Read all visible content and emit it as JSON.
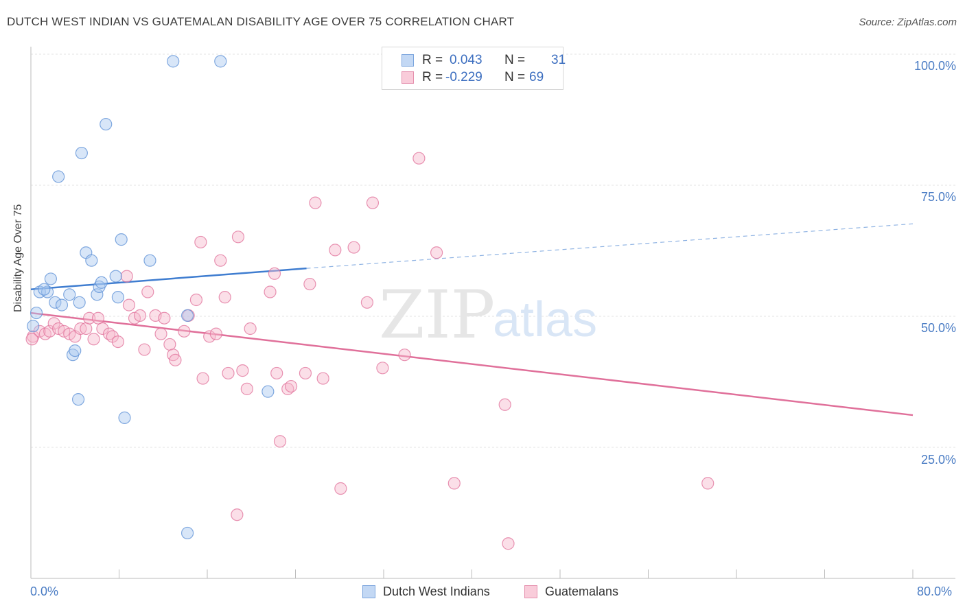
{
  "header": {
    "title": "DUTCH WEST INDIAN VS GUATEMALAN DISABILITY AGE OVER 75 CORRELATION CHART",
    "source": "Source: ZipAtlas.com"
  },
  "watermark": {
    "zip": "ZIP",
    "atlas": "atlas"
  },
  "legend": {
    "rows": [
      {
        "r_label": "R =",
        "r_value": "0.043",
        "n_label": "N =",
        "n_value": "31",
        "color": "#a9c8f0"
      },
      {
        "r_label": "R =",
        "r_value": "-0.229",
        "n_label": "N =",
        "n_value": "69",
        "color": "#f6b8cb"
      }
    ]
  },
  "chart_data": {
    "type": "scatter",
    "ylabel": "Disability Age Over 75",
    "xlabel": "",
    "xlim": [
      0,
      80
    ],
    "ylim": [
      0,
      105
    ],
    "x_tick_labels": [
      "0.0%",
      "80.0%"
    ],
    "y_tick_labels": [
      "100.0%",
      "75.0%",
      "50.0%",
      "25.0%"
    ],
    "y_ticks": [
      100,
      75,
      50,
      25
    ],
    "grid": true,
    "legend_position": "bottom-center",
    "series": [
      {
        "name": "Dutch West Indians",
        "color": "#5b8fd6",
        "fill": "#a9c8f0",
        "points": [
          [
            0.2,
            50.5
          ],
          [
            0.5,
            53.0
          ],
          [
            0.8,
            57.0
          ],
          [
            1.5,
            57.0
          ],
          [
            1.8,
            59.5
          ],
          [
            1.2,
            57.5
          ],
          [
            2.2,
            55.0
          ],
          [
            2.8,
            54.5
          ],
          [
            3.5,
            56.5
          ],
          [
            3.8,
            45.0
          ],
          [
            4.0,
            45.8
          ],
          [
            4.4,
            55.0
          ],
          [
            2.5,
            79.0
          ],
          [
            4.6,
            83.5
          ],
          [
            6.8,
            89.0
          ],
          [
            5.0,
            64.5
          ],
          [
            5.5,
            63.0
          ],
          [
            6.0,
            56.5
          ],
          [
            6.2,
            58.0
          ],
          [
            6.4,
            58.8
          ],
          [
            7.7,
            60.0
          ],
          [
            7.9,
            56.0
          ],
          [
            8.2,
            67.0
          ],
          [
            8.5,
            33.0
          ],
          [
            10.8,
            63.0
          ],
          [
            12.9,
            101.0
          ],
          [
            14.2,
            52.5
          ],
          [
            14.2,
            11.0
          ],
          [
            17.2,
            101.0
          ],
          [
            21.5,
            38.0
          ],
          [
            4.3,
            36.5
          ]
        ],
        "trend": {
          "x_start": 0,
          "y_start": 57.5,
          "x_solid_end": 25,
          "y_solid_end": 61.5,
          "x_end": 80,
          "y_end": 70.0
        }
      },
      {
        "name": "Guatemalans",
        "color": "#e0709a",
        "fill": "#f6b8cb",
        "points": [
          [
            0.2,
            48.5
          ],
          [
            0.8,
            49.5
          ],
          [
            1.3,
            49.0
          ],
          [
            1.7,
            49.5
          ],
          [
            2.1,
            51.0
          ],
          [
            2.5,
            50.0
          ],
          [
            3.0,
            49.5
          ],
          [
            3.5,
            49.0
          ],
          [
            4.0,
            48.5
          ],
          [
            4.5,
            50.0
          ],
          [
            5.0,
            50.0
          ],
          [
            5.3,
            52.0
          ],
          [
            5.7,
            48.0
          ],
          [
            6.1,
            52.0
          ],
          [
            6.5,
            50.0
          ],
          [
            7.1,
            49.0
          ],
          [
            7.4,
            48.5
          ],
          [
            7.9,
            47.5
          ],
          [
            8.7,
            60.0
          ],
          [
            8.9,
            54.5
          ],
          [
            9.4,
            52.0
          ],
          [
            9.9,
            52.5
          ],
          [
            10.3,
            46.0
          ],
          [
            10.6,
            57.0
          ],
          [
            11.3,
            52.5
          ],
          [
            11.8,
            49.0
          ],
          [
            12.1,
            52.0
          ],
          [
            12.6,
            47.0
          ],
          [
            12.9,
            45.0
          ],
          [
            13.1,
            44.0
          ],
          [
            13.9,
            49.5
          ],
          [
            14.3,
            52.5
          ],
          [
            15.0,
            55.5
          ],
          [
            15.4,
            66.5
          ],
          [
            15.6,
            40.5
          ],
          [
            16.2,
            48.5
          ],
          [
            16.8,
            49.0
          ],
          [
            17.2,
            63.0
          ],
          [
            17.6,
            56.0
          ],
          [
            17.9,
            41.5
          ],
          [
            18.8,
            67.5
          ],
          [
            19.2,
            42.0
          ],
          [
            19.6,
            38.5
          ],
          [
            19.9,
            50.0
          ],
          [
            21.7,
            57.0
          ],
          [
            22.1,
            60.5
          ],
          [
            22.3,
            41.5
          ],
          [
            22.6,
            28.5
          ],
          [
            23.3,
            38.5
          ],
          [
            23.6,
            39.0
          ],
          [
            24.9,
            41.5
          ],
          [
            25.3,
            58.5
          ],
          [
            25.8,
            74.0
          ],
          [
            26.5,
            40.5
          ],
          [
            27.6,
            65.0
          ],
          [
            28.1,
            19.5
          ],
          [
            29.3,
            65.5
          ],
          [
            30.5,
            55.0
          ],
          [
            31.0,
            74.0
          ],
          [
            31.9,
            42.5
          ],
          [
            33.9,
            45.0
          ],
          [
            35.2,
            82.5
          ],
          [
            36.8,
            64.5
          ],
          [
            38.4,
            20.5
          ],
          [
            43.0,
            35.5
          ],
          [
            43.3,
            9.0
          ],
          [
            61.4,
            20.5
          ],
          [
            18.7,
            14.5
          ],
          [
            0.1,
            48.0
          ]
        ],
        "trend": {
          "x_start": 0,
          "y_start": 53.0,
          "x_end": 80,
          "y_end": 33.5
        }
      }
    ]
  }
}
